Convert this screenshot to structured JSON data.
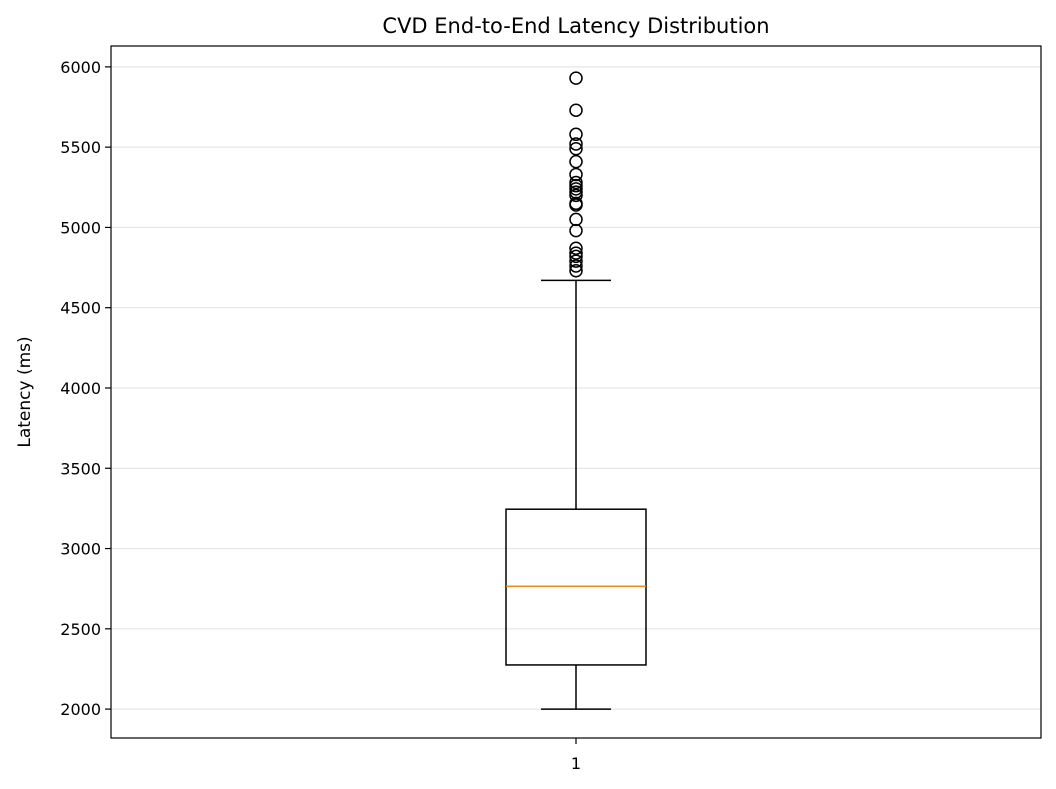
{
  "chart_data": {
    "type": "box",
    "title": "CVD End-to-End Latency Distribution",
    "xlabel": "",
    "ylabel": "Latency (ms)",
    "categories": [
      "1"
    ],
    "ylim": [
      1820,
      6130
    ],
    "yticks": [
      2000,
      2500,
      3000,
      3500,
      4000,
      4500,
      5000,
      5500,
      6000
    ],
    "grid": "horizontal",
    "box": {
      "whisker_low": 2000,
      "q1": 2275,
      "median": 2765,
      "q3": 3245,
      "whisker_high": 4670
    },
    "outliers": [
      4730,
      4760,
      4790,
      4820,
      4840,
      4870,
      4980,
      5050,
      5140,
      5150,
      5200,
      5220,
      5240,
      5260,
      5280,
      5330,
      5410,
      5490,
      5520,
      5580,
      5730,
      5930
    ],
    "colors": {
      "box": "#000000",
      "median": "#ee8822",
      "grid": "#e6e6e6",
      "outlier_edge": "#000000"
    }
  }
}
